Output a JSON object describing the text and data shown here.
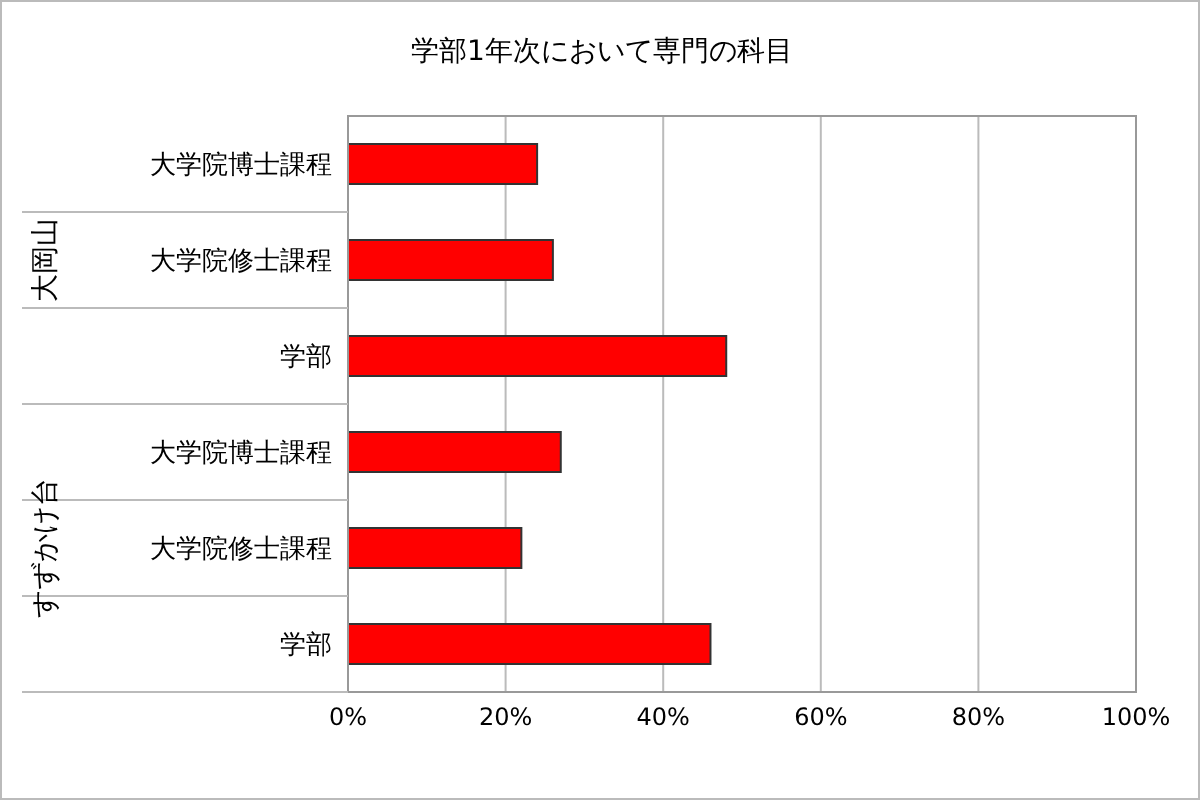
{
  "chart_data": {
    "type": "bar",
    "orientation": "horizontal",
    "title": "学部1年次において専門の科目",
    "categories": [
      "大学院博士課程",
      "大学院修士課程",
      "学部",
      "大学院博士課程",
      "大学院修士課程",
      "学部"
    ],
    "values": [
      24,
      26,
      48,
      27,
      22,
      46
    ],
    "color": "#ff0000",
    "xlim": [
      0,
      100
    ],
    "xticks": [
      {
        "value": 0,
        "label": "0%"
      },
      {
        "value": 20,
        "label": "20%"
      },
      {
        "value": 40,
        "label": "40%"
      },
      {
        "value": 60,
        "label": "60%"
      },
      {
        "value": 80,
        "label": "80%"
      },
      {
        "value": 100,
        "label": "100%"
      }
    ],
    "annotations": [
      "大岡山",
      "すずかけ台"
    ],
    "grid": "x",
    "legend": false
  }
}
